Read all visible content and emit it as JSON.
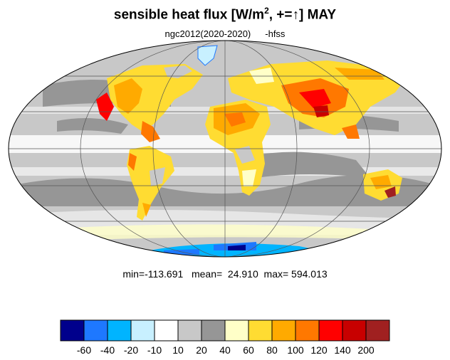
{
  "title": {
    "main": "sensible heat flux [W/m",
    "sup": "2",
    "rest": ", +=↑]  MAY"
  },
  "subtitle": {
    "left": "ngc2012(2020-2020)",
    "right": "-hfss"
  },
  "stats": {
    "text": "min=-113.691   mean=  24.910  max= 594.013",
    "min": -113.691,
    "mean": 24.91,
    "max": 594.013
  },
  "map": {
    "projection": "mollweide",
    "variable": "hfss",
    "month": "MAY"
  },
  "colorbar": {
    "colors": [
      "#00008c",
      "#1e78ff",
      "#00b4ff",
      "#c8f0ff",
      "#ffffff",
      "#c8c8c8",
      "#969696",
      "#ffffc8",
      "#ffdc32",
      "#ffaa00",
      "#ff7800",
      "#ff0000",
      "#c80000",
      "#a02020"
    ],
    "labels": [
      "-60",
      "-40",
      "-20",
      "-10",
      "10",
      "20",
      "40",
      "60",
      "80",
      "100",
      "120",
      "140",
      "200"
    ]
  }
}
